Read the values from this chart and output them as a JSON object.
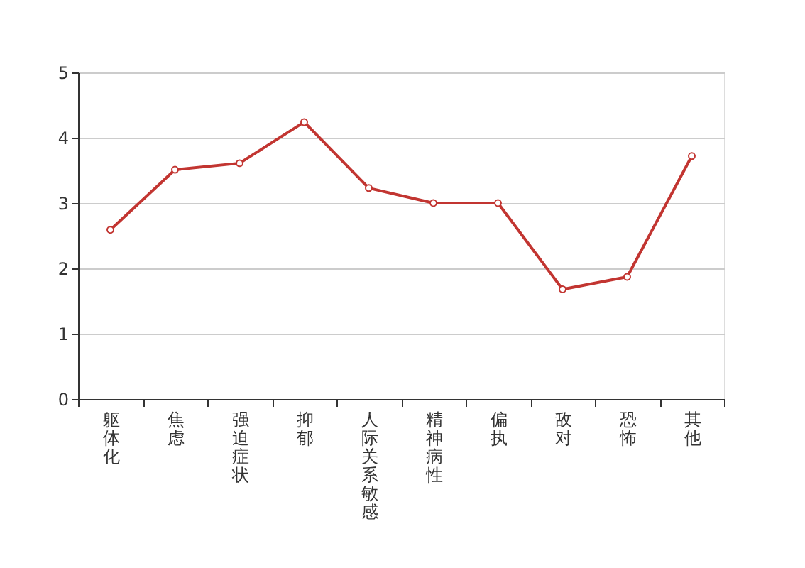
{
  "chart_data": {
    "type": "line",
    "categories": [
      "躯体化",
      "焦虑",
      "强迫症状",
      "抑郁",
      "人际关系敏感",
      "精神病性",
      "偏执",
      "敌对",
      "恐怖",
      "其他"
    ],
    "series": [
      {
        "color": "#c23531",
        "values": [
          2.59,
          3.51,
          3.61,
          4.24,
          3.23,
          3.0,
          3.0,
          1.68,
          1.87,
          3.72
        ]
      }
    ],
    "ylim": [
      0,
      5
    ],
    "yticks": [
      0,
      1,
      2,
      3,
      4,
      5
    ],
    "grid": "y",
    "marker": "circle",
    "line_style": "solid"
  }
}
